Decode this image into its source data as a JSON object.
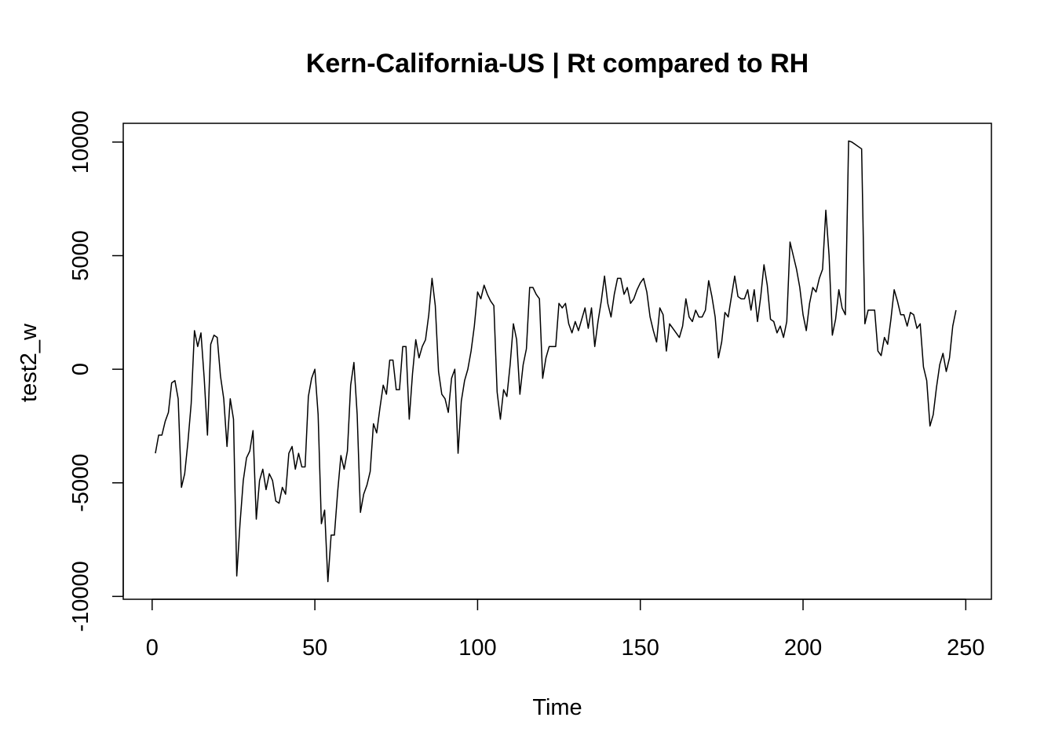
{
  "chart_data": {
    "type": "line",
    "title": "Kern-California-US | Rt compared to RH",
    "xlabel": "Time",
    "ylabel": "test2_w",
    "x": [
      1,
      2,
      3,
      4,
      5,
      6,
      7,
      8,
      9,
      10,
      11,
      12,
      13,
      14,
      15,
      16,
      17,
      18,
      19,
      20,
      21,
      22,
      23,
      24,
      25,
      26,
      27,
      28,
      29,
      30,
      31,
      32,
      33,
      34,
      35,
      36,
      37,
      38,
      39,
      40,
      41,
      42,
      43,
      44,
      45,
      46,
      47,
      48,
      49,
      50,
      51,
      52,
      53,
      54,
      55,
      56,
      57,
      58,
      59,
      60,
      61,
      62,
      63,
      64,
      65,
      66,
      67,
      68,
      69,
      70,
      71,
      72,
      73,
      74,
      75,
      76,
      77,
      78,
      79,
      80,
      81,
      82,
      83,
      84,
      85,
      86,
      87,
      88,
      89,
      90,
      91,
      92,
      93,
      94,
      95,
      96,
      97,
      98,
      99,
      100,
      101,
      102,
      103,
      104,
      105,
      106,
      107,
      108,
      109,
      110,
      111,
      112,
      113,
      114,
      115,
      116,
      117,
      118,
      119,
      120,
      121,
      122,
      123,
      124,
      125,
      126,
      127,
      128,
      129,
      130,
      131,
      132,
      133,
      134,
      135,
      136,
      137,
      138,
      139,
      140,
      141,
      142,
      143,
      144,
      145,
      146,
      147,
      148,
      149,
      150,
      151,
      152,
      153,
      154,
      155,
      156,
      157,
      158,
      159,
      160,
      161,
      162,
      163,
      164,
      165,
      166,
      167,
      168,
      169,
      170,
      171,
      172,
      173,
      174,
      175,
      176,
      177,
      178,
      179,
      180,
      181,
      182,
      183,
      184,
      185,
      186,
      187,
      188,
      189,
      190,
      191,
      192,
      193,
      194,
      195,
      196,
      197,
      198,
      199,
      200,
      201,
      202,
      203,
      204,
      205,
      206,
      207,
      208,
      209,
      210,
      211,
      212,
      213,
      214,
      215,
      216,
      217,
      218,
      219,
      220,
      221,
      222,
      223,
      224,
      225,
      226,
      227,
      228,
      229,
      230,
      231,
      232,
      233,
      234,
      235,
      236,
      237,
      238,
      239,
      240,
      241,
      242,
      243,
      244,
      245,
      246,
      247
    ],
    "series": [
      {
        "name": "test2_w",
        "color": "#000000",
        "values": [
          -3700,
          -2900,
          -2900,
          -2300,
          -1900,
          -600,
          -500,
          -1300,
          -5200,
          -4600,
          -3200,
          -1500,
          1700,
          1000,
          1600,
          -400,
          -2900,
          1100,
          1500,
          1400,
          -300,
          -1300,
          -3400,
          -1300,
          -2200,
          -9100,
          -6800,
          -4900,
          -3900,
          -3600,
          -2700,
          -6600,
          -4900,
          -4400,
          -5300,
          -4600,
          -4900,
          -5800,
          -5900,
          -5200,
          -5500,
          -3700,
          -3400,
          -4400,
          -3700,
          -4300,
          -4300,
          -1200,
          -400,
          0,
          -2000,
          -6800,
          -6200,
          -9350,
          -7300,
          -7300,
          -5400,
          -3800,
          -4400,
          -3600,
          -700,
          300,
          -2000,
          -6300,
          -5500,
          -5100,
          -4500,
          -2400,
          -2800,
          -1700,
          -700,
          -1100,
          400,
          400,
          -900,
          -900,
          1000,
          1000,
          -2200,
          -200,
          1300,
          500,
          1000,
          1300,
          2400,
          4000,
          2800,
          -100,
          -1100,
          -1300,
          -1900,
          -400,
          0,
          -3700,
          -1400,
          -500,
          0,
          800,
          1900,
          3400,
          3100,
          3700,
          3300,
          3000,
          2800,
          -1000,
          -2200,
          -900,
          -1200,
          200,
          2000,
          1300,
          -1100,
          200,
          900,
          3600,
          3600,
          3300,
          3100,
          -400,
          500,
          1000,
          1000,
          1000,
          2900,
          2700,
          2900,
          2000,
          1600,
          2100,
          1700,
          2200,
          2700,
          1800,
          2700,
          1000,
          2100,
          3000,
          4100,
          2900,
          2300,
          3300,
          4000,
          4000,
          3300,
          3600,
          2900,
          3100,
          3500,
          3800,
          4000,
          3400,
          2300,
          1700,
          1200,
          2700,
          2400,
          800,
          2000,
          1800,
          1600,
          1400,
          1900,
          3100,
          2300,
          2100,
          2600,
          2300,
          2300,
          2600,
          3900,
          3200,
          2300,
          500,
          1200,
          2500,
          2300,
          3200,
          4100,
          3200,
          3100,
          3100,
          3500,
          2600,
          3500,
          2100,
          3200,
          4600,
          3700,
          2200,
          2100,
          1600,
          1900,
          1400,
          2100,
          5600,
          5000,
          4400,
          3600,
          2400,
          1700,
          2900,
          3600,
          3400,
          4000,
          4400,
          7000,
          5000,
          1500,
          2200,
          3500,
          2700,
          2400,
          10050,
          10000,
          9900,
          9800,
          9700,
          2000,
          2600,
          2600,
          2600,
          800,
          600,
          1400,
          1100,
          2200,
          3500,
          3000,
          2400,
          2400,
          1900,
          2500,
          2400,
          1800,
          2000,
          100,
          -500,
          -2500,
          -2000,
          -800,
          200,
          700,
          -100,
          500,
          1900,
          2600
        ]
      }
    ],
    "xlim": [
      -8.88,
      257.88
    ],
    "ylim": [
      -10126,
      10826
    ],
    "xticks": [
      0,
      50,
      100,
      150,
      200,
      250
    ],
    "yticks": [
      -10000,
      -5000,
      0,
      5000,
      10000
    ],
    "grid": false
  }
}
